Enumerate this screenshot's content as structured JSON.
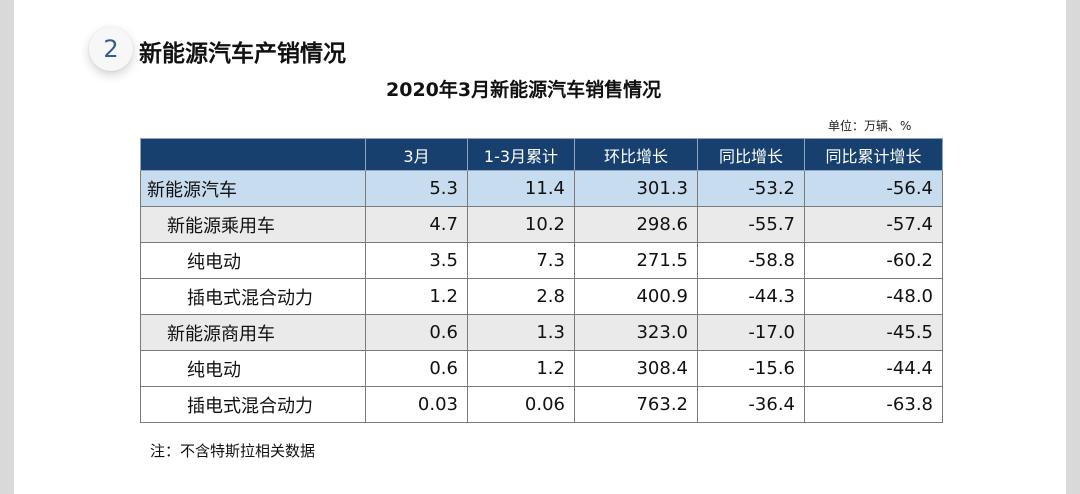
{
  "section": {
    "number": "2",
    "title": "新能源汽车产销情况"
  },
  "table_title": "2020年3月新能源汽车销售情况",
  "unit_label": "单位：万辆、%",
  "headers": [
    "",
    "3月",
    "1-3月累计",
    "环比增长",
    "同比增长",
    "同比累计增长"
  ],
  "rows": [
    {
      "name": "新能源汽车",
      "level": 1,
      "style": "hl",
      "values": [
        "5.3",
        "11.4",
        "301.3",
        "-53.2",
        "-56.4"
      ]
    },
    {
      "name": "新能源乘用车",
      "level": 2,
      "style": "sub",
      "values": [
        "4.7",
        "10.2",
        "298.6",
        "-55.7",
        "-57.4"
      ]
    },
    {
      "name": "纯电动",
      "level": 3,
      "style": "plain",
      "values": [
        "3.5",
        "7.3",
        "271.5",
        "-58.8",
        "-60.2"
      ]
    },
    {
      "name": "插电式混合动力",
      "level": 3,
      "style": "plain",
      "values": [
        "1.2",
        "2.8",
        "400.9",
        "-44.3",
        "-48.0"
      ]
    },
    {
      "name": "新能源商用车",
      "level": 2,
      "style": "sub",
      "values": [
        "0.6",
        "1.3",
        "323.0",
        "-17.0",
        "-45.5"
      ]
    },
    {
      "name": "纯电动",
      "level": 3,
      "style": "plain",
      "values": [
        "0.6",
        "1.2",
        "308.4",
        "-15.6",
        "-44.4"
      ]
    },
    {
      "name": "插电式混合动力",
      "level": 3,
      "style": "plain",
      "values": [
        "0.03",
        "0.06",
        "763.2",
        "-36.4",
        "-63.8"
      ]
    }
  ],
  "note": "注：不含特斯拉相关数据",
  "colors": {
    "header_bg": "#17406e",
    "highlight_row": "#c7dcef",
    "sub_row": "#eaeaea",
    "section_number": "#2d5f93"
  }
}
